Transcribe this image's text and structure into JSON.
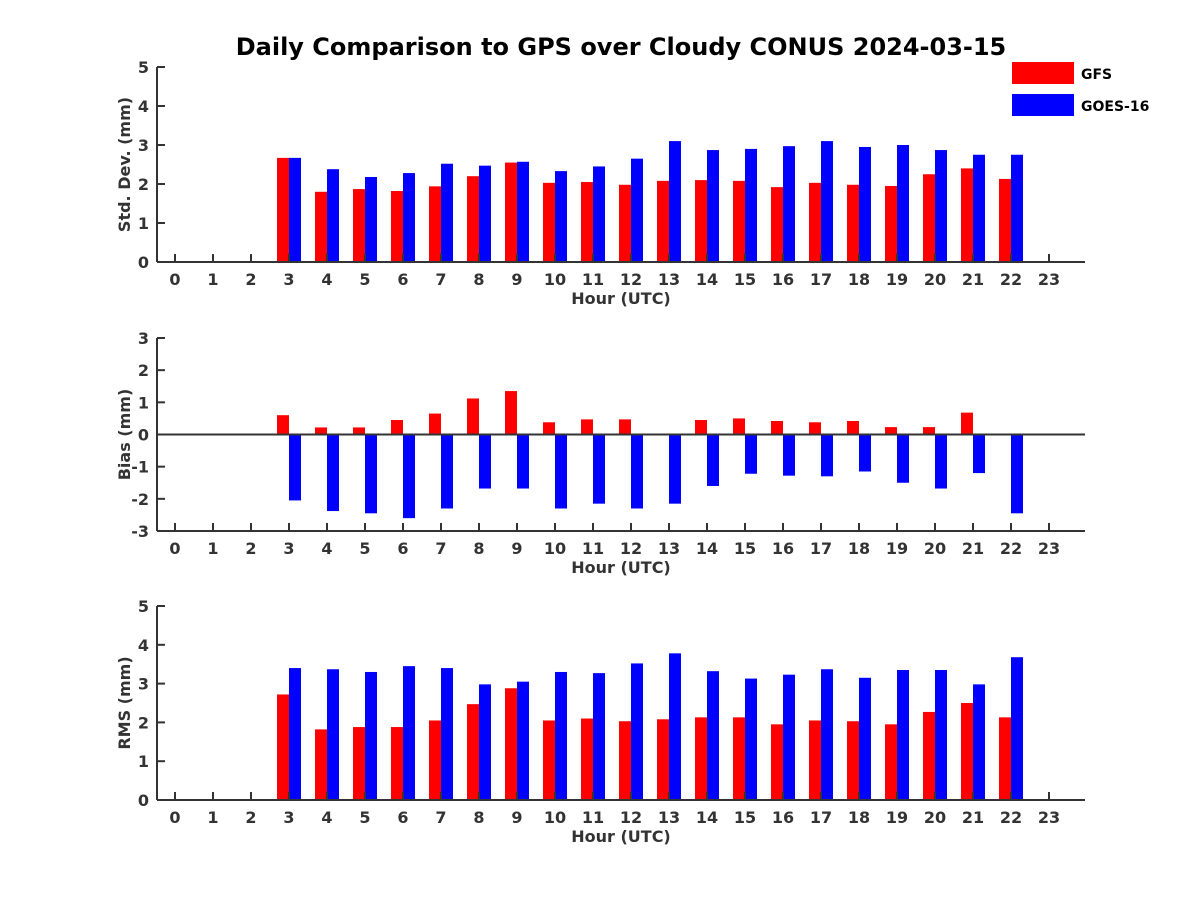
{
  "title": "Daily Comparison to GPS over Cloudy CONUS 2024-03-15",
  "colors": {
    "GFS": "#ff0000",
    "GOES-16": "#0000ff"
  },
  "legend": {
    "placement": "top-right",
    "entries": [
      "GFS",
      "GOES-16"
    ]
  },
  "chart_data": [
    {
      "type": "bar",
      "ylabel": "Std. Dev. (mm)",
      "xlabel": "Hour (UTC)",
      "ylim": [
        0,
        5
      ],
      "yticks": [
        0,
        1,
        2,
        3,
        4,
        5
      ],
      "categories": [
        "0",
        "1",
        "2",
        "3",
        "4",
        "5",
        "6",
        "7",
        "8",
        "9",
        "10",
        "11",
        "12",
        "13",
        "14",
        "15",
        "16",
        "17",
        "18",
        "19",
        "20",
        "21",
        "22",
        "23"
      ],
      "series": [
        {
          "name": "GFS",
          "values": [
            null,
            null,
            null,
            2.67,
            1.8,
            1.87,
            1.82,
            1.94,
            2.2,
            2.55,
            2.03,
            2.05,
            1.98,
            2.08,
            2.1,
            2.08,
            1.92,
            2.03,
            1.98,
            1.95,
            2.25,
            2.4,
            2.13,
            null
          ]
        },
        {
          "name": "GOES-16",
          "values": [
            null,
            null,
            null,
            2.67,
            2.38,
            2.18,
            2.28,
            2.52,
            2.47,
            2.57,
            2.33,
            2.45,
            2.65,
            3.1,
            2.87,
            2.9,
            2.97,
            3.1,
            2.95,
            3.0,
            2.87,
            2.75,
            2.75,
            null
          ]
        }
      ]
    },
    {
      "type": "bar",
      "ylabel": "Bias (mm)",
      "xlabel": "Hour (UTC)",
      "ylim": [
        -3,
        3
      ],
      "yticks": [
        -3,
        -2,
        -1,
        0,
        1,
        2,
        3
      ],
      "zero_line": true,
      "categories": [
        "0",
        "1",
        "2",
        "3",
        "4",
        "5",
        "6",
        "7",
        "8",
        "9",
        "10",
        "11",
        "12",
        "13",
        "14",
        "15",
        "16",
        "17",
        "18",
        "19",
        "20",
        "21",
        "22",
        "23"
      ],
      "series": [
        {
          "name": "GFS",
          "values": [
            null,
            null,
            null,
            0.6,
            0.22,
            0.22,
            0.45,
            0.65,
            1.12,
            1.35,
            0.38,
            0.47,
            0.47,
            0.03,
            0.45,
            0.5,
            0.42,
            0.38,
            0.42,
            0.23,
            0.23,
            0.68,
            null,
            null
          ]
        },
        {
          "name": "GOES-16",
          "values": [
            null,
            null,
            null,
            -2.05,
            -2.38,
            -2.45,
            -2.6,
            -2.3,
            -1.68,
            -1.68,
            -2.3,
            -2.15,
            -2.3,
            -2.15,
            -1.6,
            -1.22,
            -1.28,
            -1.3,
            -1.15,
            -1.5,
            -1.68,
            -1.2,
            -2.45,
            null
          ]
        }
      ]
    },
    {
      "type": "bar",
      "ylabel": "RMS (mm)",
      "xlabel": "Hour (UTC)",
      "ylim": [
        0,
        5
      ],
      "yticks": [
        0,
        1,
        2,
        3,
        4,
        5
      ],
      "categories": [
        "0",
        "1",
        "2",
        "3",
        "4",
        "5",
        "6",
        "7",
        "8",
        "9",
        "10",
        "11",
        "12",
        "13",
        "14",
        "15",
        "16",
        "17",
        "18",
        "19",
        "20",
        "21",
        "22",
        "23"
      ],
      "series": [
        {
          "name": "GFS",
          "values": [
            null,
            null,
            null,
            2.72,
            1.82,
            1.88,
            1.88,
            2.05,
            2.47,
            2.88,
            2.05,
            2.1,
            2.03,
            2.08,
            2.13,
            2.13,
            1.95,
            2.05,
            2.03,
            1.95,
            2.27,
            2.5,
            2.13,
            null
          ]
        },
        {
          "name": "GOES-16",
          "values": [
            null,
            null,
            null,
            3.4,
            3.37,
            3.3,
            3.45,
            3.4,
            2.98,
            3.05,
            3.3,
            3.27,
            3.52,
            3.78,
            3.32,
            3.13,
            3.23,
            3.37,
            3.15,
            3.35,
            3.35,
            2.98,
            3.68,
            null
          ]
        }
      ]
    }
  ]
}
